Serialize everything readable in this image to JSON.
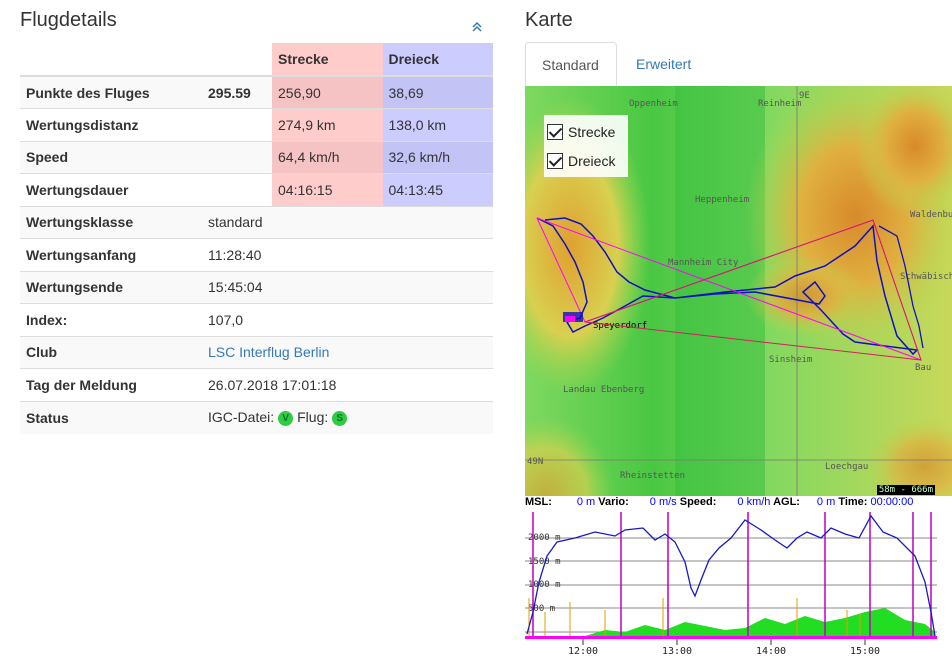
{
  "flight_details": {
    "title": "Flugdetails",
    "col_headers": [
      "Strecke",
      "Dreieck"
    ],
    "rows": [
      {
        "label": "Punkte des Fluges",
        "value": "295.59",
        "strecke": "256,90",
        "dreieck": "38,69"
      },
      {
        "label": "Wertungsdistanz",
        "value": "",
        "strecke": "274,9 km",
        "dreieck": "138,0 km"
      },
      {
        "label": "Speed",
        "value": "",
        "strecke": "64,4 km/h",
        "dreieck": "32,6 km/h"
      },
      {
        "label": "Wertungsdauer",
        "value": "",
        "strecke": "04:16:15",
        "dreieck": "04:13:45"
      }
    ],
    "info": [
      {
        "label": "Wertungsklasse",
        "value": "standard"
      },
      {
        "label": "Wertungsanfang",
        "value": "11:28:40"
      },
      {
        "label": "Wertungsende",
        "value": "15:45:04"
      },
      {
        "label": "Index:",
        "value": "107,0"
      },
      {
        "label": "Club",
        "value": "LSC Interflug Berlin"
      },
      {
        "label": "Tag der Meldung",
        "value": "26.07.2018 17:01:18"
      }
    ],
    "status": {
      "label": "Status",
      "igc_label": "IGC-Datei:",
      "igc_badge": "V",
      "flight_label": "Flug:",
      "flight_badge": "S"
    }
  },
  "map_panel": {
    "title": "Karte",
    "tabs": [
      "Standard",
      "Erweitert"
    ],
    "active_tab": "Standard",
    "layers": [
      "Strecke",
      "Dreieck"
    ],
    "places": [
      "Oppenheim",
      "Reinheim",
      "Heppenheim",
      "Mannheim City",
      "Speyerdorf",
      "Sinsheim",
      "Landau Ebenberg",
      "Rheinstetten",
      "Loechgau",
      "Waldenburg",
      "Schwäbisch Hall",
      "Bau"
    ],
    "grid_labels": [
      "9E",
      "49N"
    ],
    "scale_label": "58m - 666m",
    "colors": {
      "route": "#1010c0",
      "strecke": "#ff00ff",
      "dreieck": "#d02060"
    }
  },
  "barogram": {
    "readouts": [
      {
        "label": "MSL:",
        "value": "0",
        "unit": "m"
      },
      {
        "label": "Vario:",
        "value": "0",
        "unit": "m/s"
      },
      {
        "label": "Speed:",
        "value": "0",
        "unit": "km/h"
      },
      {
        "label": "AGL:",
        "value": "0",
        "unit": "m"
      },
      {
        "label": "Time:",
        "value": "00:00:00",
        "unit": ""
      }
    ],
    "y_labels": [
      "2000 m",
      "1500 m",
      "1000 m",
      "500 m"
    ],
    "x_labels": [
      "12:00",
      "13:00",
      "14:00",
      "15:00"
    ]
  }
}
